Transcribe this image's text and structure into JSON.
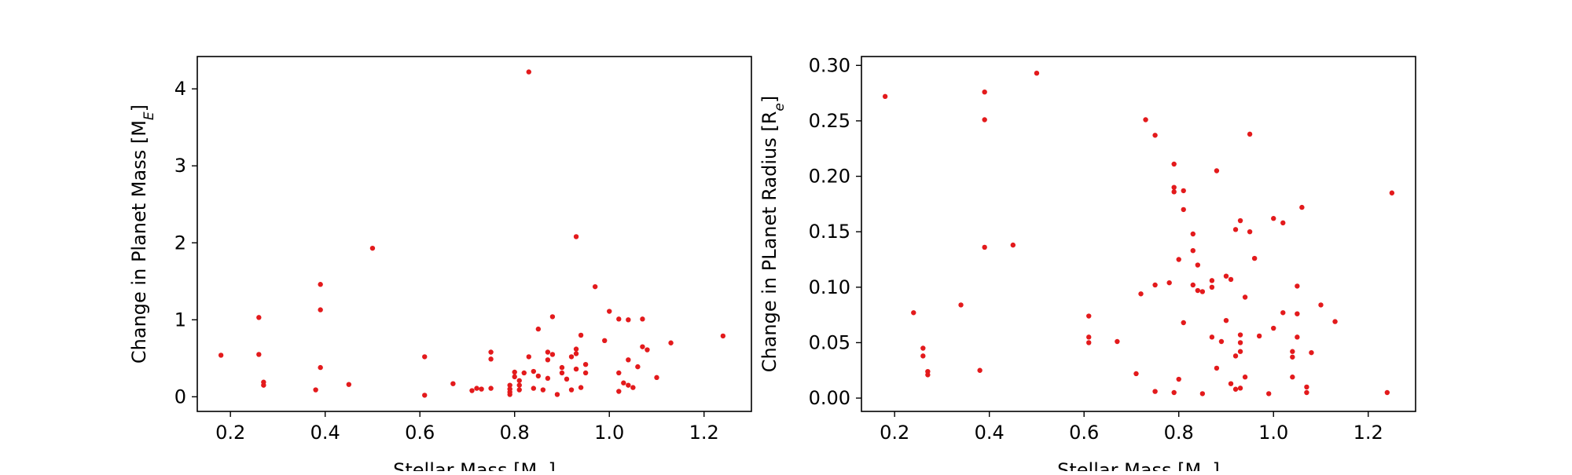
{
  "colors": {
    "points": "#e31a1c",
    "axes": "#000000",
    "background": "#ffffff"
  },
  "chart_data": [
    {
      "type": "scatter",
      "xlabel": "Stellar Mass [M",
      "xlabel_sub": "⊙",
      "xlabel_end": "]",
      "ylabel": "Change in Planet Mass [M",
      "ylabel_sub": "E",
      "ylabel_end": "]",
      "xlim": [
        0.13,
        1.3
      ],
      "ylim": [
        -0.19,
        4.42
      ],
      "xticks": [
        0.2,
        0.4,
        0.6,
        0.8,
        1.0,
        1.2
      ],
      "xtick_labels": [
        "0.2",
        "0.4",
        "0.6",
        "0.8",
        "1.0",
        "1.2"
      ],
      "yticks": [
        0,
        1,
        2,
        3,
        4
      ],
      "ytick_labels": [
        "0",
        "1",
        "2",
        "3",
        "4"
      ],
      "points": [
        [
          0.18,
          0.54
        ],
        [
          0.26,
          1.03
        ],
        [
          0.26,
          0.55
        ],
        [
          0.27,
          0.19
        ],
        [
          0.27,
          0.15
        ],
        [
          0.38,
          0.09
        ],
        [
          0.39,
          1.46
        ],
        [
          0.39,
          1.13
        ],
        [
          0.39,
          0.38
        ],
        [
          0.45,
          0.16
        ],
        [
          0.5,
          1.93
        ],
        [
          0.61,
          0.52
        ],
        [
          0.61,
          0.02
        ],
        [
          0.67,
          0.17
        ],
        [
          0.71,
          0.08
        ],
        [
          0.72,
          0.11
        ],
        [
          0.73,
          0.1
        ],
        [
          0.75,
          0.58
        ],
        [
          0.75,
          0.49
        ],
        [
          0.75,
          0.11
        ],
        [
          0.79,
          0.15
        ],
        [
          0.79,
          0.1
        ],
        [
          0.79,
          0.06
        ],
        [
          0.79,
          0.03
        ],
        [
          0.8,
          0.32
        ],
        [
          0.8,
          0.26
        ],
        [
          0.81,
          0.21
        ],
        [
          0.81,
          0.15
        ],
        [
          0.81,
          0.09
        ],
        [
          0.82,
          0.31
        ],
        [
          0.83,
          4.22
        ],
        [
          0.83,
          0.52
        ],
        [
          0.84,
          0.33
        ],
        [
          0.84,
          0.11
        ],
        [
          0.85,
          0.88
        ],
        [
          0.85,
          0.27
        ],
        [
          0.86,
          0.09
        ],
        [
          0.87,
          0.58
        ],
        [
          0.87,
          0.48
        ],
        [
          0.87,
          0.24
        ],
        [
          0.88,
          1.04
        ],
        [
          0.88,
          0.55
        ],
        [
          0.89,
          0.03
        ],
        [
          0.9,
          0.38
        ],
        [
          0.9,
          0.31
        ],
        [
          0.91,
          0.23
        ],
        [
          0.92,
          0.52
        ],
        [
          0.92,
          0.09
        ],
        [
          0.93,
          2.08
        ],
        [
          0.93,
          0.62
        ],
        [
          0.93,
          0.56
        ],
        [
          0.93,
          0.36
        ],
        [
          0.94,
          0.8
        ],
        [
          0.94,
          0.12
        ],
        [
          0.95,
          0.42
        ],
        [
          0.95,
          0.31
        ],
        [
          0.97,
          1.43
        ],
        [
          0.99,
          0.73
        ],
        [
          1.0,
          1.11
        ],
        [
          1.02,
          1.01
        ],
        [
          1.02,
          0.31
        ],
        [
          1.02,
          0.07
        ],
        [
          1.03,
          0.18
        ],
        [
          1.04,
          1.0
        ],
        [
          1.04,
          0.48
        ],
        [
          1.04,
          0.15
        ],
        [
          1.05,
          0.12
        ],
        [
          1.06,
          0.39
        ],
        [
          1.07,
          1.01
        ],
        [
          1.07,
          0.65
        ],
        [
          1.08,
          0.61
        ],
        [
          1.1,
          0.25
        ],
        [
          1.13,
          0.7
        ],
        [
          1.24,
          0.79
        ]
      ]
    },
    {
      "type": "scatter",
      "xlabel": "Stellar Mass [M",
      "xlabel_sub": "⊙",
      "xlabel_end": "]",
      "ylabel": "Change in PLanet Radius [R",
      "ylabel_sub": "e",
      "ylabel_end": "]",
      "xlim": [
        0.13,
        1.3
      ],
      "ylim": [
        -0.012,
        0.308
      ],
      "xticks": [
        0.2,
        0.4,
        0.6,
        0.8,
        1.0,
        1.2
      ],
      "xtick_labels": [
        "0.2",
        "0.4",
        "0.6",
        "0.8",
        "1.0",
        "1.2"
      ],
      "yticks": [
        0.0,
        0.05,
        0.1,
        0.15,
        0.2,
        0.25,
        0.3
      ],
      "ytick_labels": [
        "0.00",
        "0.05",
        "0.10",
        "0.15",
        "0.20",
        "0.25",
        "0.30"
      ],
      "points": [
        [
          0.18,
          0.272
        ],
        [
          0.24,
          0.077
        ],
        [
          0.26,
          0.045
        ],
        [
          0.26,
          0.038
        ],
        [
          0.27,
          0.024
        ],
        [
          0.27,
          0.021
        ],
        [
          0.34,
          0.084
        ],
        [
          0.38,
          0.025
        ],
        [
          0.39,
          0.276
        ],
        [
          0.39,
          0.251
        ],
        [
          0.39,
          0.136
        ],
        [
          0.45,
          0.138
        ],
        [
          0.5,
          0.293
        ],
        [
          0.61,
          0.074
        ],
        [
          0.61,
          0.055
        ],
        [
          0.61,
          0.05
        ],
        [
          0.67,
          0.051
        ],
        [
          0.71,
          0.022
        ],
        [
          0.72,
          0.094
        ],
        [
          0.73,
          0.251
        ],
        [
          0.75,
          0.237
        ],
        [
          0.75,
          0.102
        ],
        [
          0.75,
          0.006
        ],
        [
          0.78,
          0.104
        ],
        [
          0.79,
          0.211
        ],
        [
          0.79,
          0.19
        ],
        [
          0.79,
          0.186
        ],
        [
          0.79,
          0.005
        ],
        [
          0.8,
          0.017
        ],
        [
          0.8,
          0.125
        ],
        [
          0.81,
          0.187
        ],
        [
          0.81,
          0.17
        ],
        [
          0.81,
          0.068
        ],
        [
          0.83,
          0.148
        ],
        [
          0.83,
          0.133
        ],
        [
          0.83,
          0.102
        ],
        [
          0.84,
          0.12
        ],
        [
          0.84,
          0.097
        ],
        [
          0.85,
          0.096
        ],
        [
          0.85,
          0.004
        ],
        [
          0.87,
          0.106
        ],
        [
          0.87,
          0.1
        ],
        [
          0.87,
          0.055
        ],
        [
          0.88,
          0.205
        ],
        [
          0.88,
          0.027
        ],
        [
          0.89,
          0.051
        ],
        [
          0.9,
          0.11
        ],
        [
          0.9,
          0.07
        ],
        [
          0.91,
          0.107
        ],
        [
          0.91,
          0.013
        ],
        [
          0.92,
          0.152
        ],
        [
          0.92,
          0.038
        ],
        [
          0.92,
          0.008
        ],
        [
          0.93,
          0.16
        ],
        [
          0.93,
          0.057
        ],
        [
          0.93,
          0.05
        ],
        [
          0.93,
          0.042
        ],
        [
          0.93,
          0.009
        ],
        [
          0.94,
          0.091
        ],
        [
          0.94,
          0.019
        ],
        [
          0.95,
          0.238
        ],
        [
          0.95,
          0.15
        ],
        [
          0.96,
          0.126
        ],
        [
          0.97,
          0.056
        ],
        [
          0.99,
          0.004
        ],
        [
          1.0,
          0.162
        ],
        [
          1.0,
          0.063
        ],
        [
          1.02,
          0.158
        ],
        [
          1.02,
          0.077
        ],
        [
          1.04,
          0.042
        ],
        [
          1.04,
          0.037
        ],
        [
          1.04,
          0.019
        ],
        [
          1.05,
          0.101
        ],
        [
          1.05,
          0.076
        ],
        [
          1.05,
          0.055
        ],
        [
          1.06,
          0.172
        ],
        [
          1.07,
          0.01
        ],
        [
          1.07,
          0.005
        ],
        [
          1.08,
          0.041
        ],
        [
          1.1,
          0.084
        ],
        [
          1.13,
          0.069
        ],
        [
          1.24,
          0.005
        ],
        [
          1.25,
          0.185
        ]
      ]
    }
  ]
}
